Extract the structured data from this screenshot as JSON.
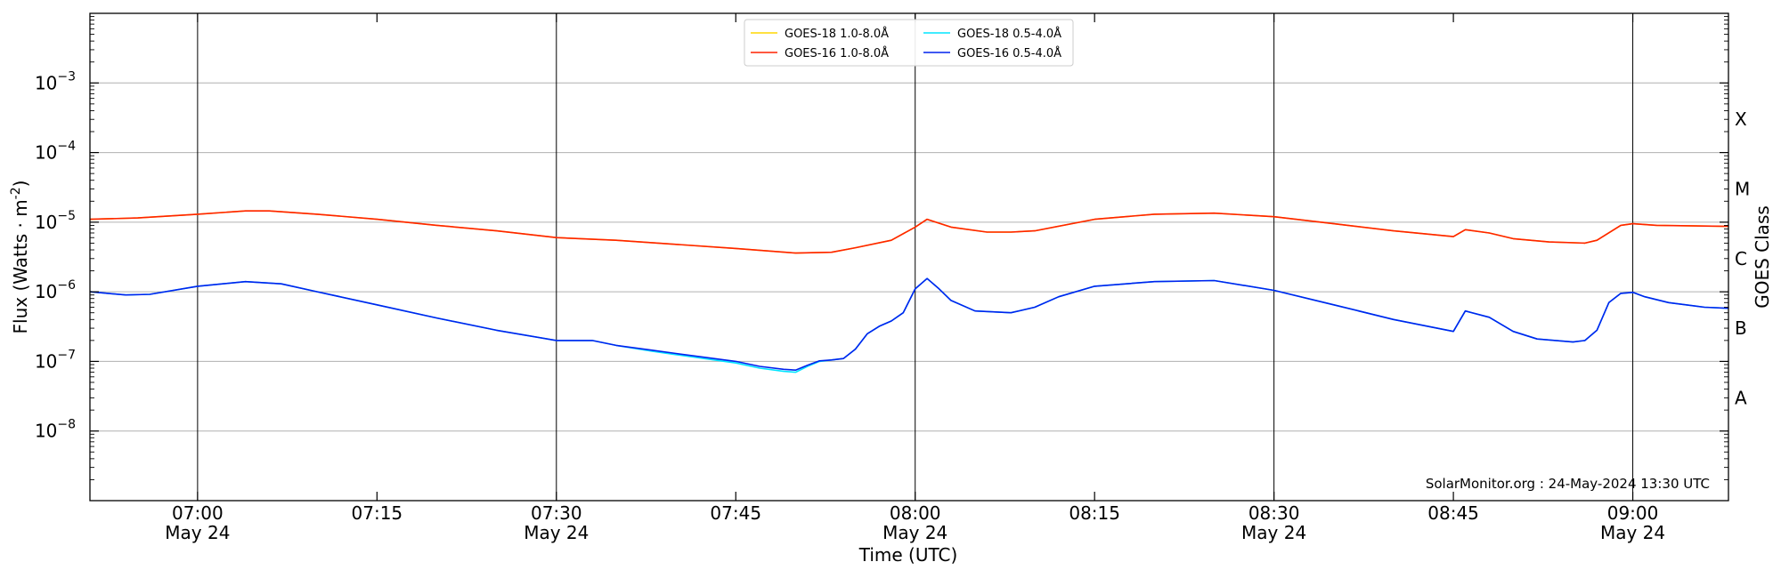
{
  "chart_data": {
    "type": "line",
    "xlabel": "Time (UTC)",
    "ylabel": "Flux (Watts · m",
    "ylabel_sup": "-2",
    "ylabel_close": ")",
    "right_label": "GOES Class",
    "y_scale": "log",
    "xlim": [
      "06:51",
      "09:08"
    ],
    "ylim": [
      1e-09,
      0.01
    ],
    "grid": "horizontal gridlines at each decade; vertical lines at each 30 minutes",
    "legend_placement": "top-center",
    "credit": "SolarMonitor.org : 24-May-2024 13:30 UTC",
    "x_ticks": [
      {
        "time": "07:00",
        "label": "07:00",
        "date": "May 24"
      },
      {
        "time": "07:15",
        "label": "07:15",
        "date": ""
      },
      {
        "time": "07:30",
        "label": "07:30",
        "date": "May 24"
      },
      {
        "time": "07:45",
        "label": "07:45",
        "date": ""
      },
      {
        "time": "08:00",
        "label": "08:00",
        "date": "May 24"
      },
      {
        "time": "08:15",
        "label": "08:15",
        "date": ""
      },
      {
        "time": "08:30",
        "label": "08:30",
        "date": "May 24"
      },
      {
        "time": "08:45",
        "label": "08:45",
        "date": ""
      },
      {
        "time": "09:00",
        "label": "09:00",
        "date": "May 24"
      }
    ],
    "y_ticks": [
      {
        "value": 1e-08,
        "base": "10",
        "exp": "−8"
      },
      {
        "value": 1e-07,
        "base": "10",
        "exp": "−7"
      },
      {
        "value": 1e-06,
        "base": "10",
        "exp": "−6"
      },
      {
        "value": 1e-05,
        "base": "10",
        "exp": "−5"
      },
      {
        "value": 0.0001,
        "base": "10",
        "exp": "−4"
      },
      {
        "value": 0.001,
        "base": "10",
        "exp": "−3"
      }
    ],
    "vlines": [
      "07:00",
      "07:30",
      "08:00",
      "08:30",
      "09:00"
    ],
    "goes_classes": [
      {
        "label": "A",
        "value": 3e-08
      },
      {
        "label": "B",
        "value": 3e-07
      },
      {
        "label": "C",
        "value": 3e-06
      },
      {
        "label": "M",
        "value": 3e-05
      },
      {
        "label": "X",
        "value": 0.0003
      }
    ],
    "series": [
      {
        "name": "GOES-18 1.0-8.0Å",
        "color": "#ffd700",
        "x": [
          "06:51",
          "06:55",
          "07:00",
          "07:04",
          "07:06",
          "07:10",
          "07:15",
          "07:20",
          "07:25",
          "07:30",
          "07:35",
          "07:40",
          "07:45",
          "07:50",
          "07:53",
          "07:55",
          "07:58",
          "08:00",
          "08:01",
          "08:03",
          "08:06",
          "08:08",
          "08:10",
          "08:15",
          "08:20",
          "08:25",
          "08:30",
          "08:35",
          "08:40",
          "08:45",
          "08:46",
          "08:48",
          "08:50",
          "08:53",
          "08:56",
          "08:57",
          "08:59",
          "09:00",
          "09:02",
          "09:08"
        ],
        "y": [
          1.1e-05,
          1.15e-05,
          1.3e-05,
          1.45e-05,
          1.45e-05,
          1.3e-05,
          1.1e-05,
          9e-06,
          7.5e-06,
          6e-06,
          5.5e-06,
          4.8e-06,
          4.2e-06,
          3.6e-06,
          3.7e-06,
          4.3e-06,
          5.5e-06,
          8.5e-06,
          1.1e-05,
          8.5e-06,
          7.2e-06,
          7.2e-06,
          7.5e-06,
          1.1e-05,
          1.3e-05,
          1.35e-05,
          1.2e-05,
          9.5e-06,
          7.5e-06,
          6.2e-06,
          7.8e-06,
          7e-06,
          5.8e-06,
          5.2e-06,
          5e-06,
          5.5e-06,
          9e-06,
          9.5e-06,
          9e-06,
          8.7e-06
        ]
      },
      {
        "name": "GOES-18 0.5-4.0Å",
        "color": "#00e5ff",
        "x": [
          "06:51",
          "06:54",
          "06:56",
          "07:00",
          "07:04",
          "07:07",
          "07:10",
          "07:15",
          "07:20",
          "07:25",
          "07:30",
          "07:33",
          "07:35",
          "07:38",
          "07:40",
          "07:45",
          "07:47",
          "07:49",
          "07:50",
          "07:51",
          "07:52",
          "07:53",
          "07:54",
          "07:55",
          "07:56",
          "07:57",
          "07:58",
          "07:59",
          "08:00",
          "08:01",
          "08:02",
          "08:03",
          "08:05",
          "08:08",
          "08:10",
          "08:12",
          "08:15",
          "08:20",
          "08:25",
          "08:30",
          "08:35",
          "08:40",
          "08:45",
          "08:46",
          "08:48",
          "08:50",
          "08:52",
          "08:55",
          "08:56",
          "08:57",
          "08:58",
          "08:59",
          "09:00",
          "09:01",
          "09:03",
          "09:06",
          "09:08"
        ],
        "y": [
          1e-06,
          9e-07,
          9.2e-07,
          1.2e-06,
          1.4e-06,
          1.3e-06,
          1e-06,
          6.5e-07,
          4.2e-07,
          2.8e-07,
          2e-07,
          2e-07,
          1.7e-07,
          1.4e-07,
          1.25e-07,
          9.5e-08,
          8e-08,
          7.2e-08,
          7e-08,
          8.5e-08,
          1e-07,
          1.05e-07,
          1.1e-07,
          1.5e-07,
          2.5e-07,
          3.2e-07,
          3.8e-07,
          5e-07,
          1.1e-06,
          1.55e-06,
          1.1e-06,
          7.5e-07,
          5.3e-07,
          5e-07,
          6e-07,
          8.5e-07,
          1.2e-06,
          1.4e-06,
          1.45e-06,
          1.05e-06,
          6.5e-07,
          4e-07,
          2.7e-07,
          5.3e-07,
          4.3e-07,
          2.7e-07,
          2.1e-07,
          1.9e-07,
          2e-07,
          2.8e-07,
          7e-07,
          9.5e-07,
          9.8e-07,
          8.5e-07,
          7e-07,
          6e-07,
          5.8e-07
        ]
      },
      {
        "name": "GOES-16 1.0-8.0Å",
        "color": "#ff2200",
        "x": [
          "06:51",
          "06:55",
          "07:00",
          "07:04",
          "07:06",
          "07:10",
          "07:15",
          "07:20",
          "07:25",
          "07:30",
          "07:35",
          "07:40",
          "07:45",
          "07:50",
          "07:53",
          "07:55",
          "07:58",
          "08:00",
          "08:01",
          "08:03",
          "08:06",
          "08:08",
          "08:10",
          "08:15",
          "08:20",
          "08:25",
          "08:30",
          "08:35",
          "08:40",
          "08:45",
          "08:46",
          "08:48",
          "08:50",
          "08:53",
          "08:56",
          "08:57",
          "08:59",
          "09:00",
          "09:02",
          "09:08"
        ],
        "y": [
          1.1e-05,
          1.15e-05,
          1.3e-05,
          1.45e-05,
          1.45e-05,
          1.3e-05,
          1.1e-05,
          9e-06,
          7.5e-06,
          6e-06,
          5.5e-06,
          4.8e-06,
          4.2e-06,
          3.6e-06,
          3.7e-06,
          4.3e-06,
          5.5e-06,
          8.5e-06,
          1.1e-05,
          8.5e-06,
          7.2e-06,
          7.2e-06,
          7.5e-06,
          1.1e-05,
          1.3e-05,
          1.35e-05,
          1.2e-05,
          9.5e-06,
          7.5e-06,
          6.2e-06,
          7.8e-06,
          7e-06,
          5.8e-06,
          5.2e-06,
          5e-06,
          5.5e-06,
          9e-06,
          9.5e-06,
          9e-06,
          8.7e-06
        ]
      },
      {
        "name": "GOES-16 0.5-4.0Å",
        "color": "#0022ee",
        "x": [
          "06:51",
          "06:54",
          "06:56",
          "07:00",
          "07:04",
          "07:07",
          "07:10",
          "07:15",
          "07:20",
          "07:25",
          "07:30",
          "07:33",
          "07:35",
          "07:38",
          "07:40",
          "07:45",
          "07:47",
          "07:49",
          "07:50",
          "07:51",
          "07:52",
          "07:53",
          "07:54",
          "07:55",
          "07:56",
          "07:57",
          "07:58",
          "07:59",
          "08:00",
          "08:01",
          "08:02",
          "08:03",
          "08:05",
          "08:08",
          "08:10",
          "08:12",
          "08:15",
          "08:20",
          "08:25",
          "08:30",
          "08:35",
          "08:40",
          "08:45",
          "08:46",
          "08:48",
          "08:50",
          "08:52",
          "08:55",
          "08:56",
          "08:57",
          "08:58",
          "08:59",
          "09:00",
          "09:01",
          "09:03",
          "09:06",
          "09:08"
        ],
        "y": [
          1e-06,
          9e-07,
          9.2e-07,
          1.2e-06,
          1.4e-06,
          1.3e-06,
          1e-06,
          6.5e-07,
          4.2e-07,
          2.8e-07,
          2e-07,
          2e-07,
          1.7e-07,
          1.45e-07,
          1.3e-07,
          1e-07,
          8.5e-08,
          7.7e-08,
          7.5e-08,
          8.8e-08,
          1.02e-07,
          1.05e-07,
          1.1e-07,
          1.5e-07,
          2.5e-07,
          3.2e-07,
          3.8e-07,
          5e-07,
          1.1e-06,
          1.55e-06,
          1.1e-06,
          7.5e-07,
          5.3e-07,
          5e-07,
          6e-07,
          8.5e-07,
          1.2e-06,
          1.4e-06,
          1.45e-06,
          1.05e-06,
          6.5e-07,
          4e-07,
          2.7e-07,
          5.3e-07,
          4.3e-07,
          2.7e-07,
          2.1e-07,
          1.9e-07,
          2e-07,
          2.8e-07,
          7e-07,
          9.5e-07,
          9.8e-07,
          8.5e-07,
          7e-07,
          6e-07,
          5.8e-07
        ]
      }
    ]
  }
}
